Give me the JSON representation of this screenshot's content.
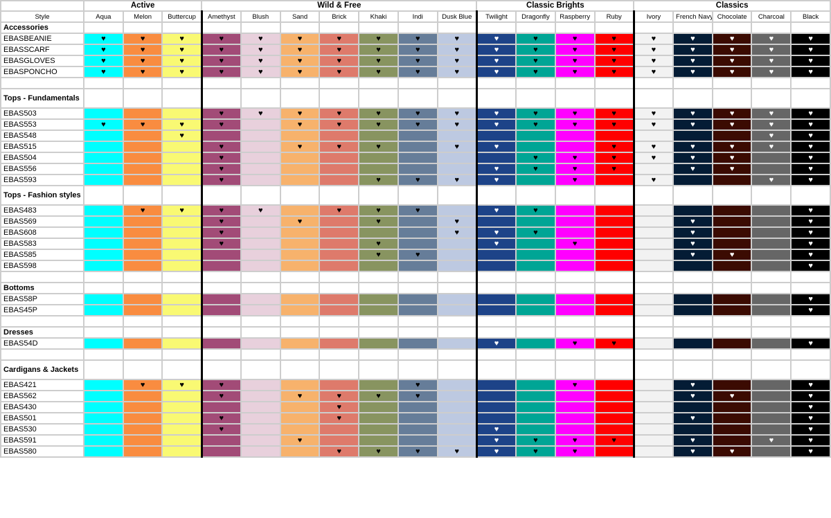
{
  "header": {
    "style_label": "Style"
  },
  "groups": [
    {
      "name": "Active",
      "span": 3
    },
    {
      "name": "Wild & Free",
      "span": 7
    },
    {
      "name": "Classic Brights",
      "span": 4
    },
    {
      "name": "Classics",
      "span": 5
    }
  ],
  "colors": [
    {
      "name": "Aqua",
      "hex": "#00ffff",
      "heart": "#000000"
    },
    {
      "name": "Melon",
      "hex": "#f98c40",
      "heart": "#000000"
    },
    {
      "name": "Buttercup",
      "hex": "#f9f973",
      "heart": "#000000"
    },
    {
      "name": "Amethyst",
      "hex": "#a24b77",
      "heart": "#000000"
    },
    {
      "name": "Blush",
      "hex": "#e8d0dc",
      "heart": "#000000"
    },
    {
      "name": "Sand",
      "hex": "#f7b26c",
      "heart": "#000000"
    },
    {
      "name": "Brick",
      "hex": "#de7a6b",
      "heart": "#000000"
    },
    {
      "name": "Khaki",
      "hex": "#889460",
      "heart": "#000000"
    },
    {
      "name": "Indi",
      "hex": "#667d99",
      "heart": "#000000"
    },
    {
      "name": "Dusk Blue",
      "hex": "#bdc9e1",
      "heart": "#000000"
    },
    {
      "name": "Twilight",
      "hex": "#1d4388",
      "heart": "#ffffff"
    },
    {
      "name": "Dragonfly",
      "hex": "#00a595",
      "heart": "#000000"
    },
    {
      "name": "Raspberry",
      "hex": "#ff00ff",
      "heart": "#000000"
    },
    {
      "name": "Ruby",
      "hex": "#ff0000",
      "heart": "#000000"
    },
    {
      "name": "Ivory",
      "hex": "#f2f2f2",
      "heart": "#000000"
    },
    {
      "name": "French Navy",
      "hex": "#041c35",
      "heart": "#ffffff"
    },
    {
      "name": "Chocolate",
      "hex": "#3b0b02",
      "heart": "#ffffff"
    },
    {
      "name": "Charcoal",
      "hex": "#666666",
      "heart": "#ffffff"
    },
    {
      "name": "Black",
      "hex": "#000000",
      "heart": "#ffffff"
    }
  ],
  "heart_symbol": "♥",
  "rows": [
    {
      "type": "section",
      "label": "Accessories"
    },
    {
      "type": "data",
      "style": "EBASBEANIE",
      "hearts": "1111111111111111111"
    },
    {
      "type": "data",
      "style": "EBASSCARF",
      "hearts": "1111111111111111111"
    },
    {
      "type": "data",
      "style": "EBASGLOVES",
      "hearts": "1111111111111111111"
    },
    {
      "type": "data",
      "style": "EBASPONCHO",
      "hearts": "1111111111111111111"
    },
    {
      "type": "blank"
    },
    {
      "type": "section",
      "label": "Tops - Fundamentals",
      "tall": true
    },
    {
      "type": "data",
      "style": "EBAS503",
      "hearts": "0001111111111111111"
    },
    {
      "type": "data",
      "style": "EBAS553",
      "hearts": "1111011111111111111"
    },
    {
      "type": "data",
      "style": "EBAS548",
      "hearts": "0010000000000000011"
    },
    {
      "type": "data",
      "style": "EBAS515",
      "hearts": "0001011101100111111"
    },
    {
      "type": "data",
      "style": "EBAS504",
      "hearts": "0001000000011111101"
    },
    {
      "type": "data",
      "style": "EBAS556",
      "hearts": "0001000000111101101"
    },
    {
      "type": "data",
      "style": "EBAS593",
      "hearts": "0001000111101010011"
    },
    {
      "type": "section",
      "label": "Tops - Fashion styles",
      "tall": true
    },
    {
      "type": "data",
      "style": "EBAS483",
      "hearts": "0111101110110000001"
    },
    {
      "type": "data",
      "style": "EBAS569",
      "hearts": "0001010101000001001"
    },
    {
      "type": "data",
      "style": "EBAS608",
      "hearts": "0001000001110001001"
    },
    {
      "type": "data",
      "style": "EBAS583",
      "hearts": "0001000100101001001"
    },
    {
      "type": "data",
      "style": "EBAS585",
      "hearts": "0000000110000001101"
    },
    {
      "type": "data",
      "style": "EBAS598",
      "hearts": "0000000000000000001"
    },
    {
      "type": "blank"
    },
    {
      "type": "section",
      "label": "Bottoms"
    },
    {
      "type": "data",
      "style": "EBAS58P",
      "hearts": "0000000000000000001"
    },
    {
      "type": "data",
      "style": "EBAS45P",
      "hearts": "0000000000000000001"
    },
    {
      "type": "blank"
    },
    {
      "type": "section",
      "label": "Dresses"
    },
    {
      "type": "data",
      "style": "EBAS54D",
      "hearts": "0000000000101100001"
    },
    {
      "type": "blank"
    },
    {
      "type": "section",
      "label": "Cardigans & Jackets",
      "tall": true
    },
    {
      "type": "data",
      "style": "EBAS421",
      "hearts": "0111000010001001001"
    },
    {
      "type": "data",
      "style": "EBAS562",
      "hearts": "0001011110000001101"
    },
    {
      "type": "data",
      "style": "EBAS430",
      "hearts": "0000001000000000001"
    },
    {
      "type": "data",
      "style": "EBAS501",
      "hearts": "0001001000000001001"
    },
    {
      "type": "data",
      "style": "EBAS530",
      "hearts": "0001000000100000001"
    },
    {
      "type": "data",
      "style": "EBAS591",
      "hearts": "0000010000111101011"
    },
    {
      "type": "data",
      "style": "EBAS580",
      "hearts": "0000001111111001101"
    }
  ]
}
